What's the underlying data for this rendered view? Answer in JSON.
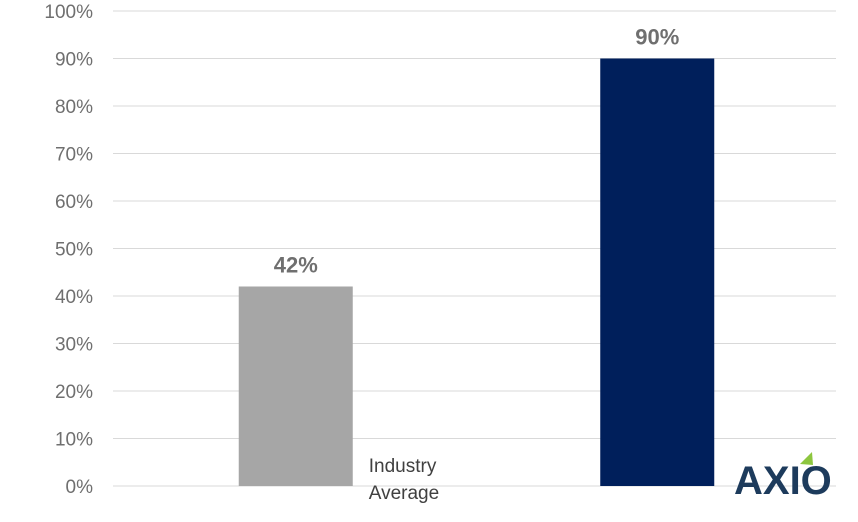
{
  "chart_data": {
    "type": "bar",
    "categories": [
      "Industry Average",
      ""
    ],
    "category_label_lines": [
      [
        "Industry",
        "Average"
      ],
      []
    ],
    "values": [
      42,
      90
    ],
    "data_labels": [
      "42%",
      "90%"
    ],
    "bar_colors": [
      "#a6a6a6",
      "#001f5b"
    ],
    "title": "",
    "xlabel": "",
    "ylabel": "",
    "ylim": [
      0,
      100
    ],
    "yticks": [
      0,
      10,
      20,
      30,
      40,
      50,
      60,
      70,
      80,
      90,
      100
    ],
    "ytick_labels": [
      "0%",
      "10%",
      "20%",
      "30%",
      "40%",
      "50%",
      "60%",
      "70%",
      "80%",
      "90%",
      "100%"
    ],
    "grid": true,
    "legend": "none"
  },
  "logo": {
    "text": "AXIO",
    "color": "#1d3b5c",
    "accent_color": "#8dc63f"
  }
}
